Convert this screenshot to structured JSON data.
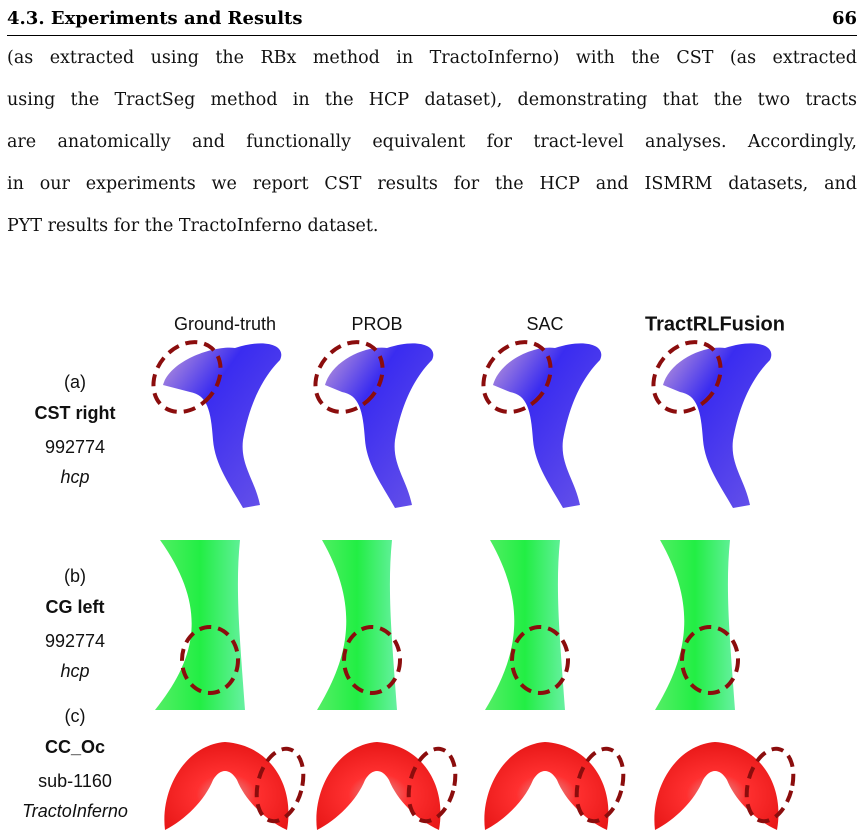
{
  "header": {
    "title": "4.3. Experiments and Results",
    "page": "66"
  },
  "paragraph": {
    "lines": [
      "(as extracted using the RBx method in TractoInferno) with the CST (as extracted",
      "using the TractSeg method in the HCP dataset), demonstrating that the two tracts",
      "are anatomically and functionally equivalent for tract-level analyses. Accordingly,",
      "in our experiments we report CST results for the HCP and ISMRM datasets, and",
      "PYT results for the TractoInferno dataset."
    ]
  },
  "figure": {
    "columns": [
      "Ground-truth",
      "PROB",
      "SAC",
      "TractRLFusion"
    ],
    "rows": [
      {
        "label": "(a)",
        "tract": "CST right",
        "subject": "992774",
        "dataset": "hcp"
      },
      {
        "label": "(b)",
        "tract": "CG left",
        "subject": "992774",
        "dataset": "hcp"
      },
      {
        "label": "(c)",
        "tract": "CC_Oc",
        "subject": "sub-1160",
        "dataset": "TractoInferno"
      }
    ]
  }
}
